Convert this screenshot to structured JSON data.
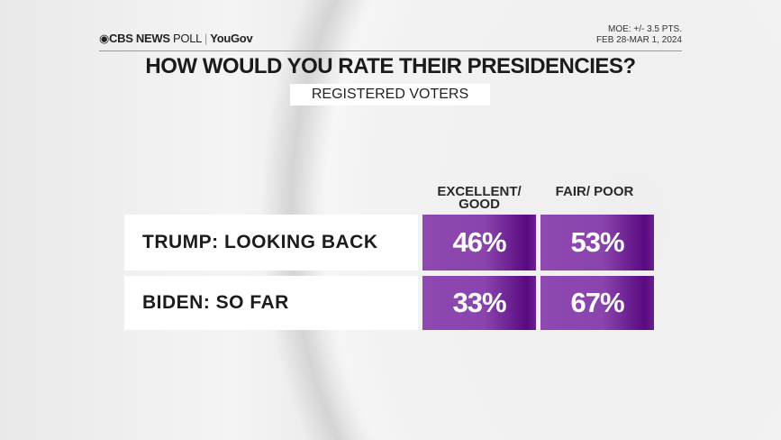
{
  "header": {
    "brand": "CBS NEWS",
    "brand_suffix": "POLL",
    "partner": "YouGov",
    "moe": "MOE: +/- 3.5 PTS.",
    "dates": "FEB 28-MAR 1, 2024"
  },
  "colors": {
    "cell": "#8a44ad",
    "cell_dark": "#5a0a80"
  },
  "chart_data": {
    "type": "table",
    "title": "HOW WOULD YOU RATE THEIR PRESIDENCIES?",
    "subtitle": "REGISTERED VOTERS",
    "columns": [
      "EXCELLENT/ GOOD",
      "FAIR/ POOR"
    ],
    "rows": [
      {
        "label": "TRUMP: LOOKING BACK",
        "values": [
          "46%",
          "53%"
        ]
      },
      {
        "label": "BIDEN: SO FAR",
        "values": [
          "33%",
          "67%"
        ]
      }
    ]
  }
}
